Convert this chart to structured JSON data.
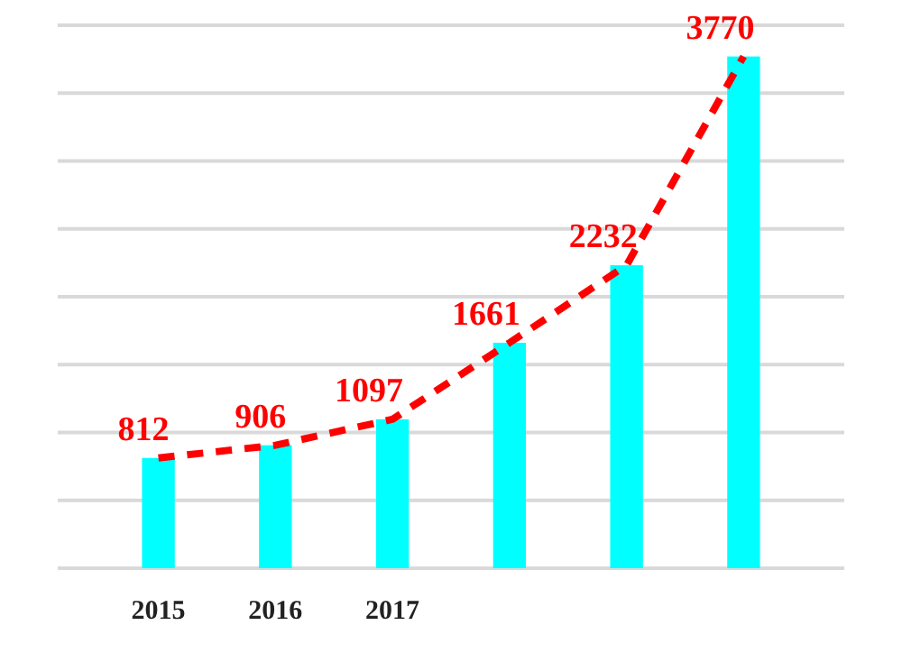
{
  "chart_data": {
    "type": "bar",
    "categories": [
      "2015",
      "2016",
      "2017",
      null,
      null,
      null
    ],
    "series": [
      {
        "color": "#00ffff",
        "values": [
          812,
          906,
          1097,
          1661,
          2232,
          3770
        ],
        "value_labels": [
          "812",
          "906",
          "1097",
          "1661",
          "2232",
          "3770"
        ]
      },
      {
        "type": "line",
        "color": "#ff0000",
        "line_style": "dashed",
        "marker": "none",
        "values": [
          812,
          906,
          1097,
          1661,
          2232,
          3770
        ]
      }
    ],
    "ylim": [
      0,
      4000
    ],
    "yticks": [
      {
        "value": 0,
        "label": null
      },
      {
        "value": 500,
        "label": null
      },
      {
        "value": 1000,
        "label": null
      },
      {
        "value": 1500,
        "label": null
      },
      {
        "value": 2000,
        "label": null
      },
      {
        "value": 2500,
        "label": null
      },
      {
        "value": 3000,
        "label": null
      },
      {
        "value": 3500,
        "label": null
      },
      {
        "value": 4000,
        "label": null
      }
    ],
    "tick_labels": "x",
    "grid": "y"
  }
}
